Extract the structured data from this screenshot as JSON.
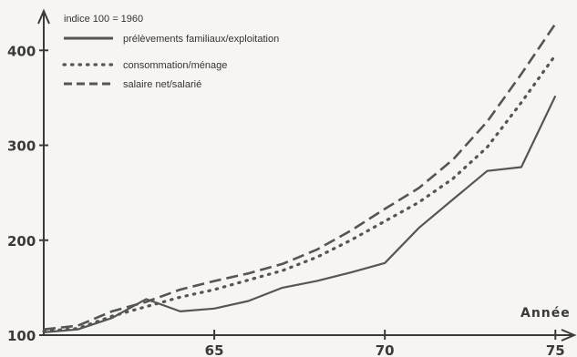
{
  "chart_data": {
    "type": "line",
    "title": "indice 100 = 1960",
    "xlabel": "Année",
    "ylabel": "",
    "xlim": [
      1960,
      1975.5
    ],
    "ylim": [
      100,
      430
    ],
    "x_ticks": [
      {
        "value": 1965,
        "label": "65"
      },
      {
        "value": 1970,
        "label": "70"
      },
      {
        "value": 1975,
        "label": "75"
      }
    ],
    "y_ticks": [
      {
        "value": 100,
        "label": "100"
      },
      {
        "value": 200,
        "label": "200"
      },
      {
        "value": 300,
        "label": "300"
      },
      {
        "value": 400,
        "label": "400"
      }
    ],
    "legend_position": "top-left",
    "series": [
      {
        "name": "prélèvements familiaux/exploitation",
        "style": "solid",
        "color": "#555555",
        "points": [
          [
            1960,
            103
          ],
          [
            1961,
            106
          ],
          [
            1962,
            118
          ],
          [
            1963,
            138
          ],
          [
            1964,
            125
          ],
          [
            1965,
            128
          ],
          [
            1966,
            136
          ],
          [
            1967,
            150
          ],
          [
            1968,
            157
          ],
          [
            1969,
            166
          ],
          [
            1970,
            176
          ],
          [
            1971,
            213
          ],
          [
            1972,
            243
          ],
          [
            1973,
            273
          ],
          [
            1974,
            277
          ],
          [
            1975,
            352
          ]
        ]
      },
      {
        "name": "consommation/ménage",
        "style": "dotted",
        "color": "#555555",
        "points": [
          [
            1960,
            104
          ],
          [
            1961,
            107
          ],
          [
            1962,
            120
          ],
          [
            1963,
            130
          ],
          [
            1964,
            140
          ],
          [
            1965,
            148
          ],
          [
            1966,
            158
          ],
          [
            1967,
            168
          ],
          [
            1968,
            182
          ],
          [
            1969,
            200
          ],
          [
            1970,
            220
          ],
          [
            1971,
            240
          ],
          [
            1972,
            265
          ],
          [
            1973,
            298
          ],
          [
            1974,
            345
          ],
          [
            1975,
            395
          ]
        ]
      },
      {
        "name": "salaire net/salarié",
        "style": "dashed",
        "color": "#555555",
        "points": [
          [
            1960,
            106
          ],
          [
            1961,
            110
          ],
          [
            1962,
            125
          ],
          [
            1963,
            135
          ],
          [
            1964,
            148
          ],
          [
            1965,
            157
          ],
          [
            1966,
            165
          ],
          [
            1967,
            175
          ],
          [
            1968,
            190
          ],
          [
            1969,
            210
          ],
          [
            1970,
            233
          ],
          [
            1971,
            255
          ],
          [
            1972,
            285
          ],
          [
            1973,
            325
          ],
          [
            1974,
            375
          ],
          [
            1975,
            428
          ]
        ]
      }
    ]
  }
}
